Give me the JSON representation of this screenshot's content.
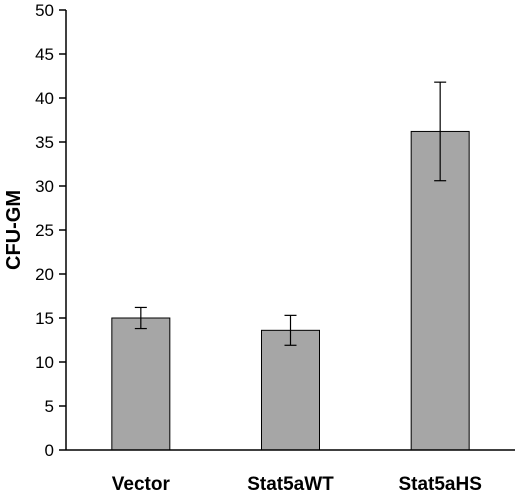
{
  "chart_data": {
    "type": "bar",
    "title": "",
    "xlabel": "",
    "ylabel": "CFU-GM",
    "ylim": [
      0,
      50
    ],
    "yticks": [
      0,
      5,
      10,
      15,
      20,
      25,
      30,
      35,
      40,
      45,
      50
    ],
    "categories": [
      "Vector",
      "Stat5aWT",
      "Stat5aHS"
    ],
    "values": [
      15.0,
      13.6,
      36.2
    ],
    "error": [
      1.2,
      1.7,
      5.6
    ],
    "grid": false,
    "legend": "none",
    "colors": {
      "bar_fill": "#a6a6a6",
      "bar_stroke": "#000000",
      "axis": "#000000"
    }
  }
}
